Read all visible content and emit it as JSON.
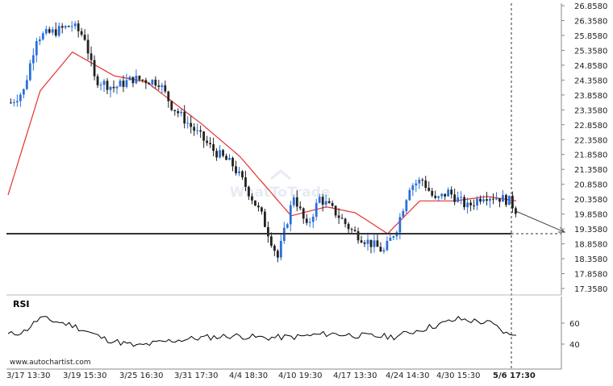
{
  "chart_data": [
    {
      "type": "candlestick",
      "price_axis": {
        "ticks": [
          "26.8580",
          "26.3580",
          "25.8580",
          "25.3580",
          "24.8580",
          "24.3580",
          "23.8580",
          "23.3580",
          "22.8580",
          "22.3580",
          "21.8580",
          "21.3580",
          "20.8580",
          "20.3580",
          "19.8580",
          "19.3580",
          "18.8580",
          "18.3580",
          "17.8580",
          "17.3580"
        ],
        "range": [
          17.358,
          26.858
        ]
      },
      "x_axis": {
        "labels": [
          "3/17 13:30",
          "3/19 15:30",
          "3/25 16:30",
          "3/31 17:30",
          "4/4 18:30",
          "4/10 19:30",
          "4/17 13:30",
          "4/24 14:30",
          "4/30 15:30",
          "5/6 17:30"
        ]
      },
      "support_level": 19.2,
      "projection": {
        "from": 19.95,
        "to": 19.25
      },
      "moving_average_anchors": [
        [
          0,
          20.5
        ],
        [
          10,
          24.0
        ],
        [
          20,
          25.3
        ],
        [
          33,
          24.5
        ],
        [
          43,
          24.3
        ],
        [
          60,
          22.9
        ],
        [
          72,
          21.8
        ],
        [
          88,
          19.8
        ],
        [
          99,
          20.1
        ],
        [
          108,
          19.9
        ],
        [
          118,
          19.2
        ],
        [
          128,
          20.3
        ],
        [
          139,
          20.3
        ],
        [
          149,
          20.45
        ],
        [
          158,
          20.3
        ]
      ],
      "price_anchors": [
        [
          0,
          23.6
        ],
        [
          4,
          24.0
        ],
        [
          8,
          25.8
        ],
        [
          14,
          26.0
        ],
        [
          19,
          26.2
        ],
        [
          23,
          25.8
        ],
        [
          26,
          24.4
        ],
        [
          32,
          24.1
        ],
        [
          38,
          24.4
        ],
        [
          46,
          24.3
        ],
        [
          50,
          23.5
        ],
        [
          56,
          22.8
        ],
        [
          63,
          22.0
        ],
        [
          69,
          21.5
        ],
        [
          73,
          20.8
        ],
        [
          78,
          19.8
        ],
        [
          83,
          18.4
        ],
        [
          88,
          20.5
        ],
        [
          92,
          19.4
        ],
        [
          96,
          20.4
        ],
        [
          101,
          19.9
        ],
        [
          106,
          19.3
        ],
        [
          110,
          19.0
        ],
        [
          116,
          18.6
        ],
        [
          120,
          19.4
        ],
        [
          124,
          20.8
        ],
        [
          128,
          21.0
        ],
        [
          132,
          20.3
        ],
        [
          136,
          20.6
        ],
        [
          142,
          20.1
        ],
        [
          147,
          20.5
        ],
        [
          152,
          20.4
        ],
        [
          155,
          20.3
        ],
        [
          158,
          19.85
        ]
      ],
      "candle_count": 158,
      "marker_label": "5/6 17:30"
    },
    {
      "type": "line",
      "title": "RSI",
      "y_ticks": [
        "60",
        "40"
      ],
      "y_range": [
        30,
        70
      ],
      "anchors": [
        [
          0,
          49
        ],
        [
          5,
          52
        ],
        [
          10,
          65
        ],
        [
          20,
          58
        ],
        [
          30,
          45
        ],
        [
          40,
          38
        ],
        [
          50,
          43
        ],
        [
          60,
          46
        ],
        [
          70,
          48
        ],
        [
          80,
          46
        ],
        [
          90,
          47
        ],
        [
          100,
          50
        ],
        [
          110,
          48
        ],
        [
          120,
          47
        ],
        [
          126,
          52
        ],
        [
          132,
          57
        ],
        [
          140,
          64
        ],
        [
          150,
          60
        ],
        [
          156,
          48
        ],
        [
          158,
          51
        ]
      ]
    }
  ],
  "branding": {
    "website": "www.autochartist.com",
    "watermark": "WhatToTrade"
  },
  "colors": {
    "up_candle": "#2a6fdb",
    "down_candle": "#222222",
    "moving_average": "#e53030",
    "support": "#333333",
    "rsi_line": "#000000"
  }
}
